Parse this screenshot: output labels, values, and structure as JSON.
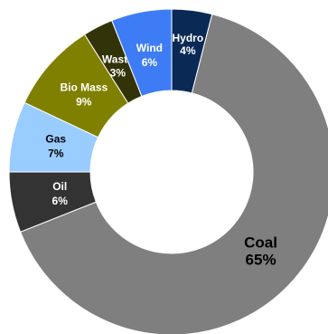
{
  "chart_data": {
    "type": "pie",
    "donut": true,
    "legend": "none",
    "categories": [
      "Hydro",
      "Coal",
      "Oil",
      "Gas",
      "Bio Mass",
      "Waste",
      "Wind"
    ],
    "values": [
      4,
      65,
      6,
      7,
      9,
      3,
      6
    ],
    "value_labels": [
      "4%",
      "65%",
      "6%",
      "7%",
      "9%",
      "3%",
      "6%"
    ],
    "colors": [
      "#0a2a55",
      "#7f7f7f",
      "#333333",
      "#99ccff",
      "#808000",
      "#33330a",
      "#3d7cf5"
    ],
    "label_colors": [
      "#ffffff",
      "#000000",
      "#ffffff",
      "#000000",
      "#ffffff",
      "#ffffff",
      "#ffffff"
    ]
  }
}
